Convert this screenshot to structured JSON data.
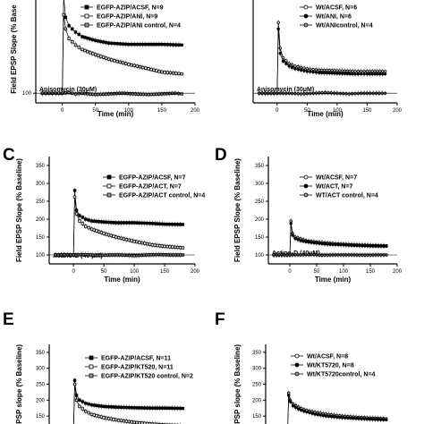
{
  "colors": {
    "ink": "#000000",
    "open": "#ffffff",
    "gray": "#9a9a9a"
  },
  "chart_data": [
    {
      "panel": "",
      "type": "line",
      "ylabel": "Field EPSP Slope (% Base",
      "xlabel": "Time (min)",
      "xticks": [
        "0",
        "50",
        "100",
        "150",
        "200"
      ],
      "yticks": [
        "100"
      ],
      "xlim": [
        -40,
        200
      ],
      "ylim": [
        85,
        245
      ],
      "drug": {
        "label": "Anisomycin (30μM)",
        "from": 0,
        "to": 180
      },
      "series": [
        {
          "name": "EGFP-AZIP/ACSF, N=9",
          "marker": "square",
          "fill": "filled",
          "x": [
            -30,
            -25,
            -20,
            -15,
            -10,
            -5,
            0,
            2,
            5,
            10,
            20,
            30,
            50,
            70,
            100,
            130,
            150,
            180
          ],
          "y": [
            100,
            100,
            100,
            100,
            100,
            100,
            100,
            250,
            218,
            205,
            195,
            188,
            182,
            178,
            176,
            176,
            176,
            175
          ]
        },
        {
          "name": "EGFP-AZIP/ANI, N=9",
          "marker": "square",
          "fill": "open",
          "x": [
            -30,
            -25,
            -20,
            -15,
            -10,
            -5,
            0,
            2,
            5,
            10,
            20,
            30,
            50,
            70,
            100,
            130,
            150,
            180
          ],
          "y": [
            100,
            100,
            100,
            100,
            100,
            100,
            100,
            222,
            200,
            185,
            175,
            168,
            160,
            153,
            145,
            138,
            133,
            130
          ]
        },
        {
          "name": "EGFP-AZIP/ANI control, N=4",
          "marker": "square",
          "fill": "gray",
          "x": [
            -30,
            -20,
            -10,
            0,
            10,
            20,
            30,
            50,
            70,
            90,
            110,
            130,
            150,
            170,
            180
          ],
          "y": [
            100,
            100,
            100,
            100,
            101,
            99,
            100,
            98,
            99,
            100,
            99,
            98,
            99,
            100,
            99
          ]
        }
      ]
    },
    {
      "panel": "",
      "type": "line",
      "ylabel": "",
      "xlabel": "Time (min)",
      "xticks": [
        "0",
        "50",
        "100",
        "150",
        "200"
      ],
      "yticks": [],
      "xlim": [
        -40,
        200
      ],
      "ylim": [
        85,
        245
      ],
      "drug": {
        "label": "Anisomycin (30μM)",
        "from": 0,
        "to": 180
      },
      "series": [
        {
          "name": "Wt/ACSF, N=6",
          "marker": "circle",
          "fill": "open",
          "x": [
            -30,
            -20,
            -10,
            0,
            2,
            5,
            10,
            20,
            30,
            50,
            70,
            100,
            130,
            150,
            180
          ],
          "y": [
            100,
            100,
            100,
            100,
            210,
            170,
            155,
            146,
            142,
            138,
            136,
            135,
            134,
            134,
            134
          ]
        },
        {
          "name": "Wt/ANI, N=6",
          "marker": "circle",
          "fill": "filled",
          "x": [
            -30,
            -20,
            -10,
            0,
            2,
            5,
            10,
            20,
            30,
            50,
            70,
            100,
            130,
            150,
            180
          ],
          "y": [
            100,
            100,
            100,
            100,
            200,
            162,
            150,
            142,
            138,
            134,
            132,
            131,
            130,
            130,
            130
          ]
        },
        {
          "name": "Wt/ANIcontrol, N=4",
          "marker": "circle",
          "fill": "gray",
          "x": [
            -30,
            -20,
            -10,
            0,
            20,
            40,
            60,
            80,
            100,
            120,
            140,
            160,
            180
          ],
          "y": [
            100,
            100,
            100,
            100,
            100,
            99,
            100,
            101,
            100,
            99,
            100,
            100,
            100
          ]
        }
      ]
    },
    {
      "panel": "C",
      "type": "line",
      "ylabel": "Field EPSP Slope (% Baseline)",
      "xlabel": "Time (min)",
      "xticks": [
        "0",
        "50",
        "100",
        "150",
        "200"
      ],
      "yticks": [
        "100",
        "150",
        "200",
        "250",
        "300",
        "350"
      ],
      "xlim": [
        -40,
        200
      ],
      "ylim": [
        75,
        375
      ],
      "drug": {
        "label": "Actino-D (40 μM)",
        "from": 0,
        "to": 180
      },
      "series": [
        {
          "name": "EGFP-AZIP/ACSF, N=7",
          "marker": "square",
          "fill": "filled",
          "x": [
            -30,
            -20,
            -10,
            0,
            2,
            5,
            10,
            20,
            30,
            50,
            70,
            100,
            130,
            150,
            180
          ],
          "y": [
            100,
            100,
            100,
            100,
            280,
            225,
            210,
            200,
            195,
            192,
            190,
            190,
            188,
            186,
            185
          ]
        },
        {
          "name": "EGFP-AZIP/ACT, N=7",
          "marker": "square",
          "fill": "open",
          "x": [
            -30,
            -20,
            -10,
            0,
            2,
            5,
            10,
            20,
            30,
            50,
            70,
            100,
            130,
            150,
            180
          ],
          "y": [
            100,
            100,
            100,
            100,
            262,
            215,
            195,
            180,
            172,
            160,
            150,
            138,
            128,
            124,
            120
          ]
        },
        {
          "name": "EGFP-AZIP/ACT control, N=4",
          "marker": "square",
          "fill": "gray",
          "x": [
            -30,
            -20,
            -10,
            0,
            20,
            40,
            60,
            80,
            100,
            120,
            140,
            160,
            180
          ],
          "y": [
            100,
            100,
            100,
            100,
            101,
            99,
            100,
            100,
            98,
            100,
            101,
            100,
            100
          ]
        }
      ]
    },
    {
      "panel": "D",
      "type": "line",
      "ylabel": "Field EPSP Slope (% Baseline)",
      "xlabel": "Time (min)",
      "xticks": [
        "0",
        "50",
        "100",
        "150",
        "200"
      ],
      "yticks": [
        "100",
        "150",
        "200",
        "250",
        "300",
        "350"
      ],
      "xlim": [
        -40,
        200
      ],
      "ylim": [
        75,
        375
      ],
      "drug": {
        "label": "Actino-D (40μM)",
        "from": 0,
        "to": 180
      },
      "series": [
        {
          "name": "Wt/ACSF, N=7",
          "marker": "circle",
          "fill": "open",
          "x": [
            -30,
            -20,
            -10,
            0,
            2,
            5,
            10,
            20,
            30,
            50,
            70,
            100,
            130,
            150,
            180
          ],
          "y": [
            100,
            100,
            100,
            100,
            195,
            160,
            150,
            145,
            140,
            136,
            133,
            130,
            128,
            127,
            126
          ]
        },
        {
          "name": "Wt/ACT, N=7",
          "marker": "circle",
          "fill": "filled",
          "x": [
            -30,
            -20,
            -10,
            0,
            2,
            5,
            10,
            20,
            30,
            50,
            70,
            100,
            130,
            150,
            180
          ],
          "y": [
            100,
            100,
            100,
            100,
            188,
            155,
            146,
            140,
            137,
            133,
            130,
            128,
            126,
            125,
            124
          ]
        },
        {
          "name": "WT/ACT control, N=4",
          "marker": "circle",
          "fill": "gray",
          "x": [
            -30,
            -20,
            -10,
            0,
            20,
            40,
            60,
            80,
            100,
            120,
            140,
            160,
            180
          ],
          "y": [
            100,
            100,
            100,
            100,
            100,
            101,
            99,
            100,
            100,
            100,
            99,
            100,
            100
          ]
        }
      ]
    },
    {
      "panel": "E",
      "type": "line",
      "ylabel": "EPSP slope (% Baseline)",
      "xlabel": "",
      "xticks": [],
      "yticks": [
        "150",
        "200",
        "250",
        "300",
        "350"
      ],
      "xlim": [
        -40,
        200
      ],
      "ylim": [
        125,
        375
      ],
      "drug": null,
      "series": [
        {
          "name": "EGFP-AZIP/ACSF, N=11",
          "marker": "square",
          "fill": "filled",
          "x": [
            0,
            2,
            5,
            10,
            20,
            30,
            50,
            70,
            100,
            130,
            150,
            180
          ],
          "y": [
            100,
            262,
            215,
            200,
            190,
            185,
            180,
            178,
            176,
            175,
            175,
            174
          ]
        },
        {
          "name": "EGFP-AZIP/KT520, N=11",
          "marker": "square",
          "fill": "open",
          "x": [
            0,
            2,
            5,
            10,
            20,
            30,
            50,
            70,
            100,
            130,
            150,
            180
          ],
          "y": [
            100,
            250,
            200,
            180,
            165,
            155,
            145,
            138,
            130,
            125,
            122,
            120
          ]
        },
        {
          "name": "EGFP-AZIP/KT520 control, N=2",
          "marker": "square",
          "fill": "gray",
          "x": [
            0,
            20,
            40,
            60,
            80,
            100,
            120,
            140,
            160,
            180
          ],
          "y": [
            100,
            100,
            100,
            100,
            100,
            100,
            100,
            100,
            100,
            100
          ]
        }
      ]
    },
    {
      "panel": "F",
      "type": "line",
      "ylabel": "EPSP slope (% Baseline)",
      "xlabel": "",
      "xticks": [],
      "yticks": [
        "150",
        "200",
        "250",
        "300",
        "350"
      ],
      "xlim": [
        -40,
        200
      ],
      "ylim": [
        125,
        375
      ],
      "drug": null,
      "series": [
        {
          "name": "Wt/ACSF, N=8",
          "marker": "circle",
          "fill": "open",
          "x": [
            0,
            2,
            5,
            10,
            20,
            30,
            50,
            70,
            100,
            130,
            150,
            180
          ],
          "y": [
            100,
            222,
            200,
            188,
            178,
            170,
            162,
            156,
            150,
            146,
            144,
            142
          ]
        },
        {
          "name": "Wt/KT5720, N=8",
          "marker": "circle",
          "fill": "filled",
          "x": [
            0,
            2,
            5,
            10,
            20,
            30,
            50,
            70,
            100,
            130,
            150,
            180
          ],
          "y": [
            100,
            215,
            195,
            182,
            172,
            165,
            156,
            150,
            145,
            142,
            140,
            138
          ]
        },
        {
          "name": "Wt/KT5720control, N=4",
          "marker": "circle",
          "fill": "gray",
          "x": [
            0,
            20,
            40,
            60,
            80,
            100,
            120,
            140,
            160,
            180
          ],
          "y": [
            100,
            100,
            100,
            100,
            100,
            100,
            100,
            100,
            100,
            100
          ]
        }
      ]
    }
  ]
}
